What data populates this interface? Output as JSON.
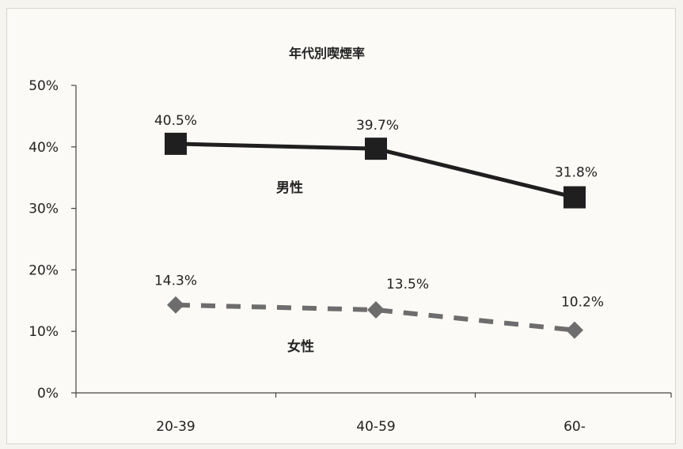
{
  "chart_data": {
    "type": "line",
    "title": "年代別喫煙率",
    "categories": [
      "20-39",
      "40-59",
      "60-"
    ],
    "ylim": [
      0,
      50
    ],
    "yticks": [
      "0%",
      "10%",
      "20%",
      "30%",
      "40%",
      "50%"
    ],
    "grid": false,
    "series": [
      {
        "name": "男性",
        "values": [
          40.5,
          39.7,
          31.8
        ],
        "labels": [
          "40.5%",
          "39.7%",
          "31.8%"
        ],
        "color": "#1f1f1f",
        "marker": "square",
        "line": "solid"
      },
      {
        "name": "女性",
        "values": [
          14.3,
          13.5,
          10.2
        ],
        "labels": [
          "14.3%",
          "13.5%",
          "10.2%"
        ],
        "color": "#6d6d6d",
        "marker": "diamond",
        "line": "dashed"
      }
    ]
  }
}
